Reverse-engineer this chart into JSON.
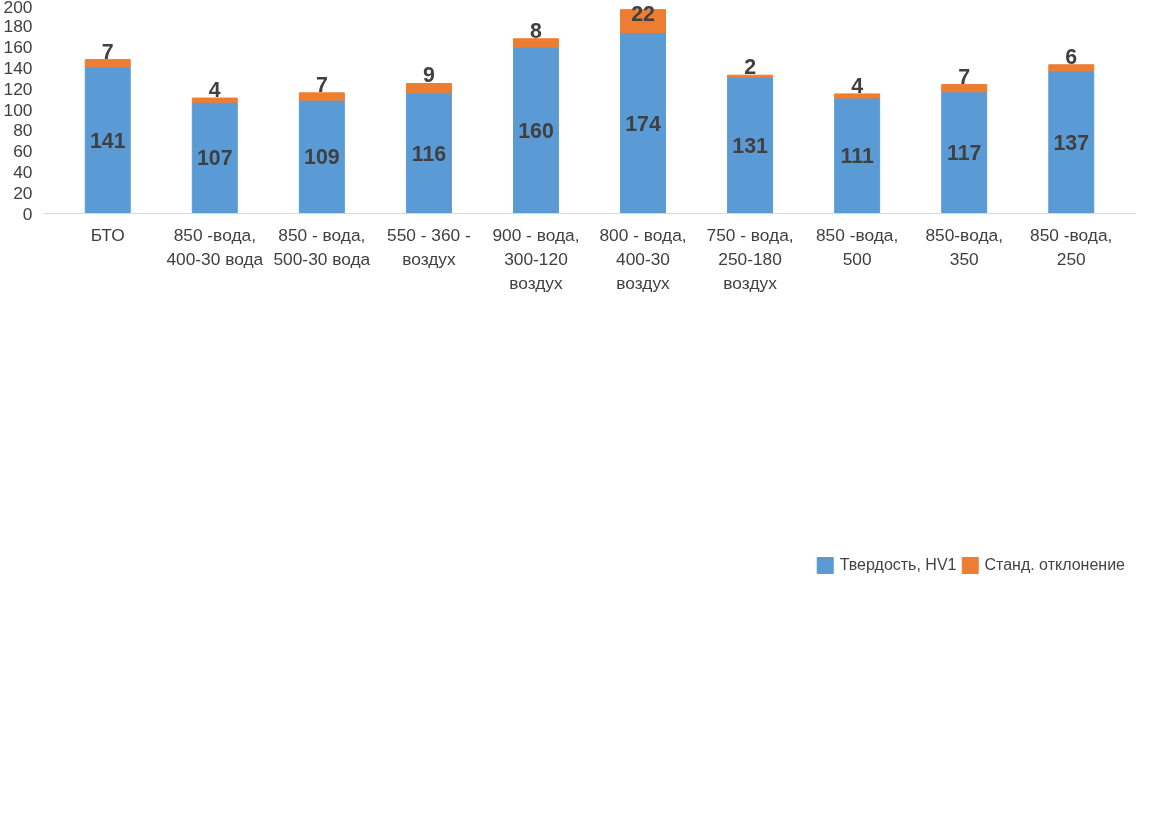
{
  "chart_data": {
    "type": "bar",
    "stacked": true,
    "categories": [
      "БТО",
      "850 -вода, 400-30 вода",
      "850 - вода, 500-30 вода",
      "550 - 360 - воздух",
      "900 - вода, 300-120 воздух",
      "800 - вода, 400-30 воздух",
      "750 - вода, 250-180 воздух",
      "850 -вода, 500",
      "850-вода, 350",
      "850 -вода, 250"
    ],
    "series": [
      {
        "name": "Твердость, HV1",
        "color": "#5b9bd5",
        "values": [
          141,
          107,
          109,
          116,
          160,
          174,
          131,
          111,
          117,
          137
        ]
      },
      {
        "name": "Станд. отклонение",
        "color": "#ed7d31",
        "values": [
          7,
          4,
          7,
          9,
          8,
          22,
          2,
          4,
          7,
          6
        ]
      }
    ],
    "ylim": [
      0,
      200
    ],
    "yticks": [
      0,
      20,
      40,
      60,
      80,
      100,
      120,
      140,
      160,
      180,
      200
    ],
    "grid": false,
    "legend": "bottom",
    "data_labels": true
  }
}
